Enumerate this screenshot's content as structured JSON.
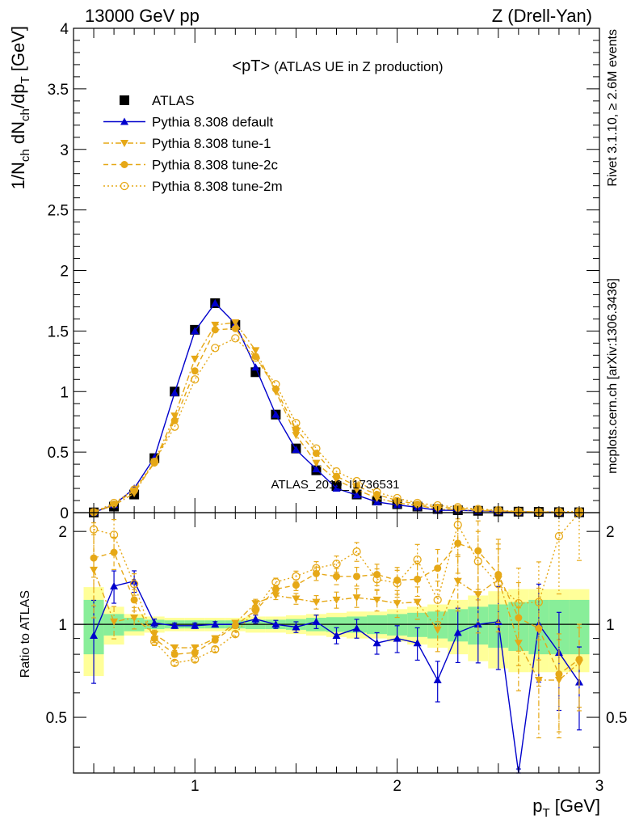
{
  "header": {
    "left": "13000 GeV pp",
    "right": "Z (Drell-Yan)",
    "side_top": "Rivet 3.1.10, ≥ 2.6M events",
    "side_bottom": "mcplots.cern.ch [arXiv:1306.3436]",
    "watermark": "ATLAS_2019_I1736531"
  },
  "chart_data": {
    "type": "line",
    "title": "<pT>",
    "subtitle": "(ATLAS UE in Z production)",
    "xlabel_main": "p",
    "xlabel_sub": "T",
    "xlabel_unit": " [GeV]",
    "ylabel_main": "1/N",
    "ylabel_sub1": "ch",
    "ylabel_mid": " dN",
    "ylabel_sub2": "ch",
    "ylabel_mid2": "/dp",
    "ylabel_sub3": "T",
    "ylabel_unit": " [GeV]",
    "ratio_ylabel": "Ratio to ATLAS",
    "xlim": [
      0.4,
      3.0
    ],
    "ylim": [
      0,
      4
    ],
    "ratio_ylim": [
      0.33,
      2.3
    ],
    "main_y_ticks": [
      "0",
      "0.5",
      "1",
      "1.5",
      "2",
      "2.5",
      "3",
      "3.5",
      "4"
    ],
    "ratio_y_ticks": [
      "0.5",
      "1",
      "2"
    ],
    "x_ticks": [
      "1",
      "2",
      "3"
    ],
    "legend_position": "top-left",
    "x": [
      0.5,
      0.6,
      0.7,
      0.8,
      0.9,
      1.0,
      1.1,
      1.2,
      1.3,
      1.4,
      1.5,
      1.6,
      1.7,
      1.8,
      1.9,
      2.0,
      2.1,
      2.2,
      2.3,
      2.4,
      2.5,
      2.6,
      2.7,
      2.8,
      2.9
    ],
    "series": [
      {
        "name": "ATLAS",
        "color": "#000000",
        "style": "data",
        "values": [
          0.002,
          0.05,
          0.15,
          0.45,
          1.0,
          1.51,
          1.73,
          1.55,
          1.16,
          0.81,
          0.53,
          0.35,
          0.22,
          0.15,
          0.1,
          0.07,
          0.05,
          0.03,
          0.02,
          0.015,
          0.01,
          0.008,
          0.006,
          0.004,
          0.003
        ]
      },
      {
        "name": "Pythia 8.308 default",
        "color": "#0000cc",
        "style": "solid",
        "marker": "triangle-up",
        "values": [
          0.002,
          0.065,
          0.2,
          0.455,
          0.99,
          1.5,
          1.73,
          1.56,
          1.2,
          0.81,
          0.52,
          0.36,
          0.2,
          0.145,
          0.088,
          0.064,
          0.044,
          0.02,
          0.019,
          0.015,
          0.01,
          0.005,
          0.006,
          0.003,
          0.002
        ],
        "ratio": [
          0.92,
          1.33,
          1.38,
          1.01,
          0.99,
          0.99,
          1.0,
          1.0,
          1.04,
          1.0,
          0.98,
          1.02,
          0.92,
          0.97,
          0.87,
          0.9,
          0.87,
          0.66,
          0.94,
          1.0,
          1.02,
          0.2,
          1.0,
          0.81,
          0.65
        ],
        "ratio_err": [
          0.3,
          0.12,
          0.08,
          0.03,
          0.02,
          0.02,
          0.02,
          0.02,
          0.03,
          0.03,
          0.04,
          0.05,
          0.06,
          0.07,
          0.08,
          0.1,
          0.12,
          0.15,
          0.2,
          0.25,
          0.3,
          0.3,
          0.35,
          0.35,
          0.3
        ]
      },
      {
        "name": "Pythia 8.308 tune-1",
        "color": "#e6a817",
        "style": "dashdot",
        "marker": "triangle-down",
        "values": [
          0.003,
          0.06,
          0.16,
          0.42,
          0.8,
          1.27,
          1.55,
          1.57,
          1.34,
          1.0,
          0.64,
          0.41,
          0.27,
          0.19,
          0.12,
          0.08,
          0.06,
          0.03,
          0.025,
          0.018,
          0.012,
          0.008,
          0.004,
          0.0026,
          0.002
        ],
        "ratio": [
          1.5,
          1.02,
          1.05,
          0.93,
          0.84,
          0.84,
          0.9,
          1.01,
          1.17,
          1.24,
          1.21,
          1.18,
          1.2,
          1.22,
          1.2,
          1.17,
          1.18,
          0.96,
          1.38,
          1.25,
          1.4,
          0.87,
          0.66,
          0.66,
          0.75
        ],
        "ratio_err": [
          0.3,
          0.12,
          0.08,
          0.03,
          0.02,
          0.02,
          0.02,
          0.02,
          0.03,
          0.03,
          0.04,
          0.05,
          0.06,
          0.07,
          0.08,
          0.1,
          0.12,
          0.15,
          0.2,
          0.25,
          0.3,
          0.3,
          0.35,
          0.35,
          0.3
        ]
      },
      {
        "name": "Pythia 8.308 tune-2c",
        "color": "#e6a817",
        "style": "dashed",
        "marker": "circle",
        "values": [
          0.003,
          0.07,
          0.18,
          0.41,
          0.76,
          1.17,
          1.51,
          1.52,
          1.29,
          1.02,
          0.69,
          0.49,
          0.3,
          0.22,
          0.15,
          0.1,
          0.07,
          0.045,
          0.036,
          0.025,
          0.015,
          0.009,
          0.006,
          0.003,
          0.002
        ],
        "ratio": [
          1.64,
          1.71,
          1.2,
          0.9,
          0.8,
          0.81,
          0.89,
          0.99,
          1.11,
          1.3,
          1.34,
          1.46,
          1.43,
          1.43,
          1.45,
          1.39,
          1.4,
          1.52,
          1.83,
          1.73,
          1.45,
          1.05,
          0.97,
          0.69,
          0.77
        ],
        "ratio_err": [
          0.3,
          0.12,
          0.08,
          0.03,
          0.02,
          0.02,
          0.02,
          0.02,
          0.03,
          0.03,
          0.04,
          0.05,
          0.06,
          0.07,
          0.08,
          0.1,
          0.12,
          0.15,
          0.2,
          0.25,
          0.3,
          0.3,
          0.35,
          0.35,
          0.3
        ]
      },
      {
        "name": "Pythia 8.308 tune-2m",
        "color": "#e6a817",
        "style": "dotted",
        "marker": "open-circle",
        "values": [
          0.004,
          0.08,
          0.19,
          0.42,
          0.71,
          1.1,
          1.36,
          1.44,
          1.28,
          1.06,
          0.74,
          0.53,
          0.34,
          0.26,
          0.17,
          0.12,
          0.08,
          0.06,
          0.045,
          0.03,
          0.02,
          0.01,
          0.006,
          0.008,
          0.01
        ],
        "ratio": [
          2.03,
          1.95,
          1.35,
          0.88,
          0.75,
          0.77,
          0.83,
          0.93,
          1.12,
          1.37,
          1.43,
          1.52,
          1.57,
          1.72,
          1.4,
          1.36,
          1.62,
          1.2,
          2.1,
          1.6,
          1.35,
          1.17,
          1.18,
          1.93,
          2.3
        ],
        "ratio_err": [
          0.3,
          0.12,
          0.08,
          0.03,
          0.02,
          0.02,
          0.02,
          0.02,
          0.03,
          0.03,
          0.04,
          0.05,
          0.06,
          0.07,
          0.08,
          0.1,
          0.12,
          0.15,
          0.2,
          0.25,
          0.3,
          0.3,
          0.35,
          0.35,
          0.3
        ]
      }
    ],
    "bands": {
      "yellow_half": [
        0.32,
        0.14,
        0.08,
        0.06,
        0.05,
        0.05,
        0.05,
        0.05,
        0.06,
        0.06,
        0.07,
        0.08,
        0.09,
        0.1,
        0.1,
        0.12,
        0.14,
        0.16,
        0.2,
        0.24,
        0.28,
        0.3,
        0.3,
        0.3,
        0.3
      ],
      "green_half": [
        0.2,
        0.08,
        0.05,
        0.035,
        0.03,
        0.03,
        0.03,
        0.03,
        0.035,
        0.035,
        0.04,
        0.05,
        0.055,
        0.06,
        0.07,
        0.08,
        0.09,
        0.1,
        0.12,
        0.14,
        0.16,
        0.18,
        0.2,
        0.2,
        0.2
      ]
    }
  }
}
